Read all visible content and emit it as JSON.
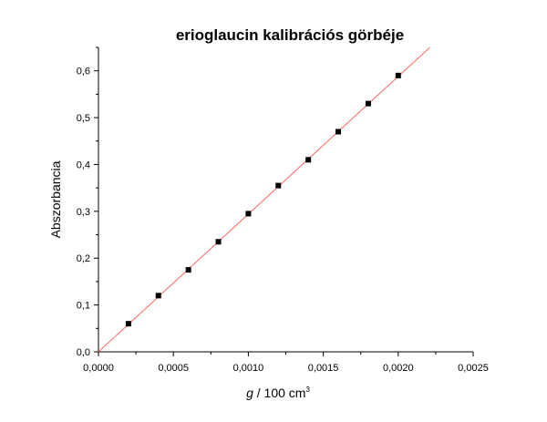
{
  "chart_data": {
    "type": "scatter",
    "title": "erioglaucin kalibrációs görbéje",
    "xlabel": {
      "symbol": "g",
      "text": " / 100 cm",
      "superscript": "3"
    },
    "ylabel": "Abszorbancia",
    "xlim": [
      0,
      0.0025
    ],
    "ylim": [
      0,
      0.65
    ],
    "x_ticks": [
      0,
      0.0005,
      0.001,
      0.0015,
      0.002,
      0.0025
    ],
    "x_tick_labels": [
      "0,0000",
      "0,0005",
      "0,0010",
      "0,0015",
      "0,0020",
      "0,0025"
    ],
    "y_ticks": [
      0,
      0.1,
      0.2,
      0.3,
      0.4,
      0.5,
      0.6
    ],
    "y_tick_labels": [
      "0,0",
      "0,1",
      "0,2",
      "0,3",
      "0,4",
      "0,5",
      "0,6"
    ],
    "grid": false,
    "series": [
      {
        "x": [
          0.0002,
          0.0004,
          0.0006,
          0.0008,
          0.001,
          0.0012,
          0.0014,
          0.0016,
          0.0018,
          0.002
        ],
        "y": [
          0.06,
          0.12,
          0.175,
          0.235,
          0.295,
          0.355,
          0.41,
          0.47,
          0.53,
          0.59
        ],
        "marker": "square",
        "color": "#000000"
      }
    ],
    "fit_line": {
      "slope": 294,
      "intercept": 0,
      "x_range": [
        0,
        0.00221
      ],
      "color": "#ff6666"
    }
  }
}
